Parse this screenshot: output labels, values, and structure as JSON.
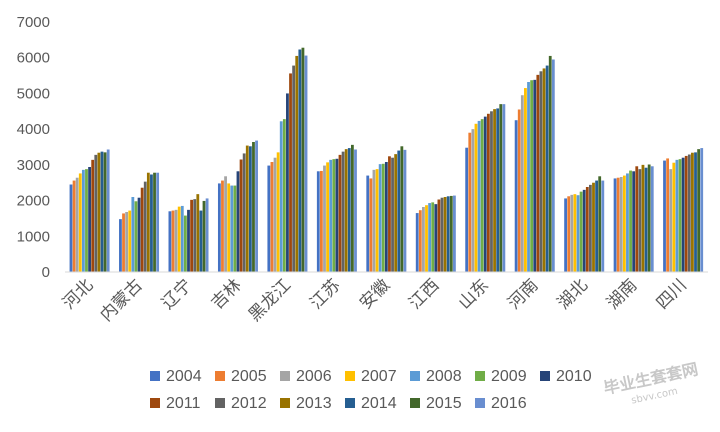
{
  "chart_data": {
    "type": "bar",
    "title": "",
    "xlabel": "",
    "ylabel": "",
    "ylim": [
      0,
      7000
    ],
    "yticks": [
      0,
      1000,
      2000,
      3000,
      4000,
      5000,
      6000,
      7000
    ],
    "grid": false,
    "legend_position": "bottom",
    "categories": [
      "河北",
      "内蒙古",
      "辽宁",
      "吉林",
      "黑龙江",
      "江苏",
      "安徽",
      "江西",
      "山东",
      "河南",
      "湖北",
      "湖南",
      "四川"
    ],
    "series": [
      {
        "name": "2004",
        "color": "#4472C4",
        "values": [
          2450,
          1480,
          1700,
          2480,
          2980,
          2820,
          2700,
          1650,
          3480,
          4250,
          2060,
          2620,
          3120
        ]
      },
      {
        "name": "2005",
        "color": "#ED7D31",
        "values": [
          2560,
          1640,
          1720,
          2560,
          3080,
          2830,
          2620,
          1730,
          3900,
          4550,
          2120,
          2640,
          3180
        ]
      },
      {
        "name": "2006",
        "color": "#A5A5A5",
        "values": [
          2640,
          1680,
          1740,
          2680,
          3200,
          2980,
          2860,
          1820,
          4000,
          4950,
          2160,
          2660,
          2880
        ]
      },
      {
        "name": "2007",
        "color": "#FFC000",
        "values": [
          2760,
          1720,
          1830,
          2480,
          3350,
          3070,
          2880,
          1870,
          4150,
          5150,
          2180,
          2700,
          3060
        ]
      },
      {
        "name": "2008",
        "color": "#5B9BD5",
        "values": [
          2860,
          2100,
          1850,
          2420,
          4220,
          3140,
          3020,
          1930,
          4230,
          5320,
          2150,
          2760,
          3140
        ]
      },
      {
        "name": "2009",
        "color": "#70AD47",
        "values": [
          2880,
          1980,
          1580,
          2420,
          4280,
          3160,
          3030,
          1950,
          4280,
          5370,
          2250,
          2840,
          3160
        ]
      },
      {
        "name": "2010",
        "color": "#264478",
        "values": [
          2940,
          2080,
          1740,
          2820,
          5000,
          3170,
          3080,
          1900,
          4350,
          5380,
          2300,
          2820,
          3200
        ]
      },
      {
        "name": "2011",
        "color": "#9E480E",
        "values": [
          3140,
          2360,
          2020,
          3150,
          5560,
          3280,
          3240,
          2030,
          4430,
          5520,
          2380,
          2960,
          3250
        ]
      },
      {
        "name": "2012",
        "color": "#636363",
        "values": [
          3280,
          2530,
          2040,
          3320,
          5780,
          3370,
          3200,
          2080,
          4500,
          5620,
          2440,
          2880,
          3290
        ]
      },
      {
        "name": "2013",
        "color": "#997300",
        "values": [
          3340,
          2780,
          2180,
          3540,
          6050,
          3440,
          3300,
          2100,
          4560,
          5700,
          2500,
          3000,
          3340
        ]
      },
      {
        "name": "2014",
        "color": "#255E91",
        "values": [
          3370,
          2730,
          1720,
          3520,
          6230,
          3470,
          3400,
          2120,
          4580,
          5780,
          2560,
          2920,
          3350
        ]
      },
      {
        "name": "2015",
        "color": "#43682B",
        "values": [
          3350,
          2780,
          1990,
          3640,
          6280,
          3560,
          3520,
          2130,
          4700,
          6050,
          2680,
          3010,
          3440
        ]
      },
      {
        "name": "2016",
        "color": "#698ED0",
        "values": [
          3430,
          2780,
          2060,
          3680,
          6060,
          3430,
          3420,
          2140,
          4700,
          5950,
          2560,
          2960,
          3470
        ]
      }
    ]
  },
  "watermark": {
    "main": "毕业生套套网",
    "sub": "sbvv.com"
  }
}
